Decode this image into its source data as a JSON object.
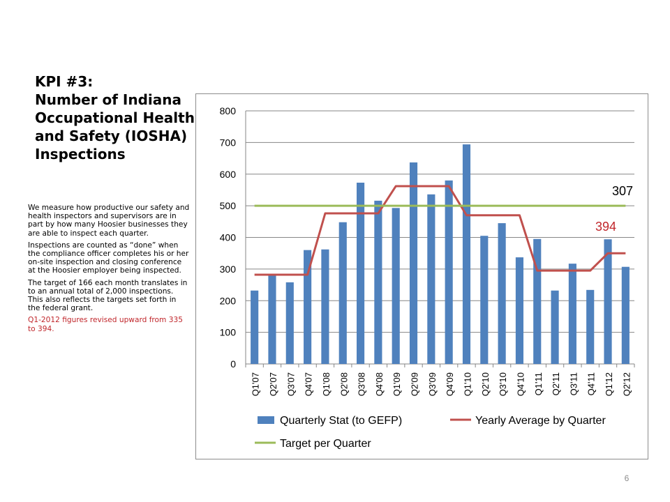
{
  "slide": {
    "title_lines": [
      "KPI #3:",
      "Number of Indiana",
      "Occupational Health",
      "and Safety (IOSHA)",
      "Inspections"
    ],
    "paragraphs": [
      "We measure how productive our safety and health inspectors and supervisors are in part by how many Hoosier businesses they are able to inspect each quarter.",
      "Inspections are counted as “done” when the compliance officer completes his or her on-site inspection and closing conference at the Hoosier employer being inspected.",
      "The target of 166 each month translates in to an annual total of 2,000 inspections.  This also reflects the targets set forth in the federal grant."
    ],
    "note": "Q1-2012 figures revised upward from 335 to 394.",
    "page_number": "6"
  },
  "chart_data": {
    "type": "bar",
    "categories": [
      "Q1'07",
      "Q2'07",
      "Q3'07",
      "Q4'07",
      "Q1'08",
      "Q2'08",
      "Q3'08",
      "Q4'08",
      "Q1'09",
      "Q2'09",
      "Q3'09",
      "Q4'09",
      "Q1'10",
      "Q2'10",
      "Q3'10",
      "Q4'10",
      "Q1'11",
      "Q2'11",
      "Q3'11",
      "Q4'11",
      "Q1'12",
      "Q2'12"
    ],
    "series": [
      {
        "name": "Quarterly Stat (to GEFP)",
        "type": "bar",
        "color": "#4f81bd",
        "values": [
          232,
          283,
          258,
          360,
          362,
          448,
          573,
          516,
          493,
          637,
          536,
          580,
          694,
          405,
          445,
          337,
          395,
          232,
          317,
          234,
          394,
          307
        ]
      },
      {
        "name": "Yearly Average by Quarter",
        "type": "line",
        "color": "#c0504d",
        "values": [
          282,
          282,
          282,
          282,
          476,
          476,
          476,
          476,
          562,
          562,
          562,
          562,
          470,
          470,
          470,
          470,
          295,
          295,
          295,
          295,
          350,
          350
        ]
      },
      {
        "name": "Target per Quarter",
        "type": "line",
        "color": "#9bbb59",
        "values": [
          500,
          500,
          500,
          500,
          500,
          500,
          500,
          500,
          500,
          500,
          500,
          500,
          500,
          500,
          500,
          500,
          500,
          500,
          500,
          500,
          500,
          500
        ]
      }
    ],
    "ylim": [
      0,
      800
    ],
    "yticks": [
      0,
      100,
      200,
      300,
      400,
      500,
      600,
      700,
      800
    ],
    "grid": true,
    "legend_position": "bottom",
    "annotations": [
      {
        "text": "307",
        "color": "#000000"
      },
      {
        "text": "394",
        "color": "#c0262b"
      }
    ],
    "colors": {
      "axis": "#868686",
      "grid": "#868686"
    }
  }
}
